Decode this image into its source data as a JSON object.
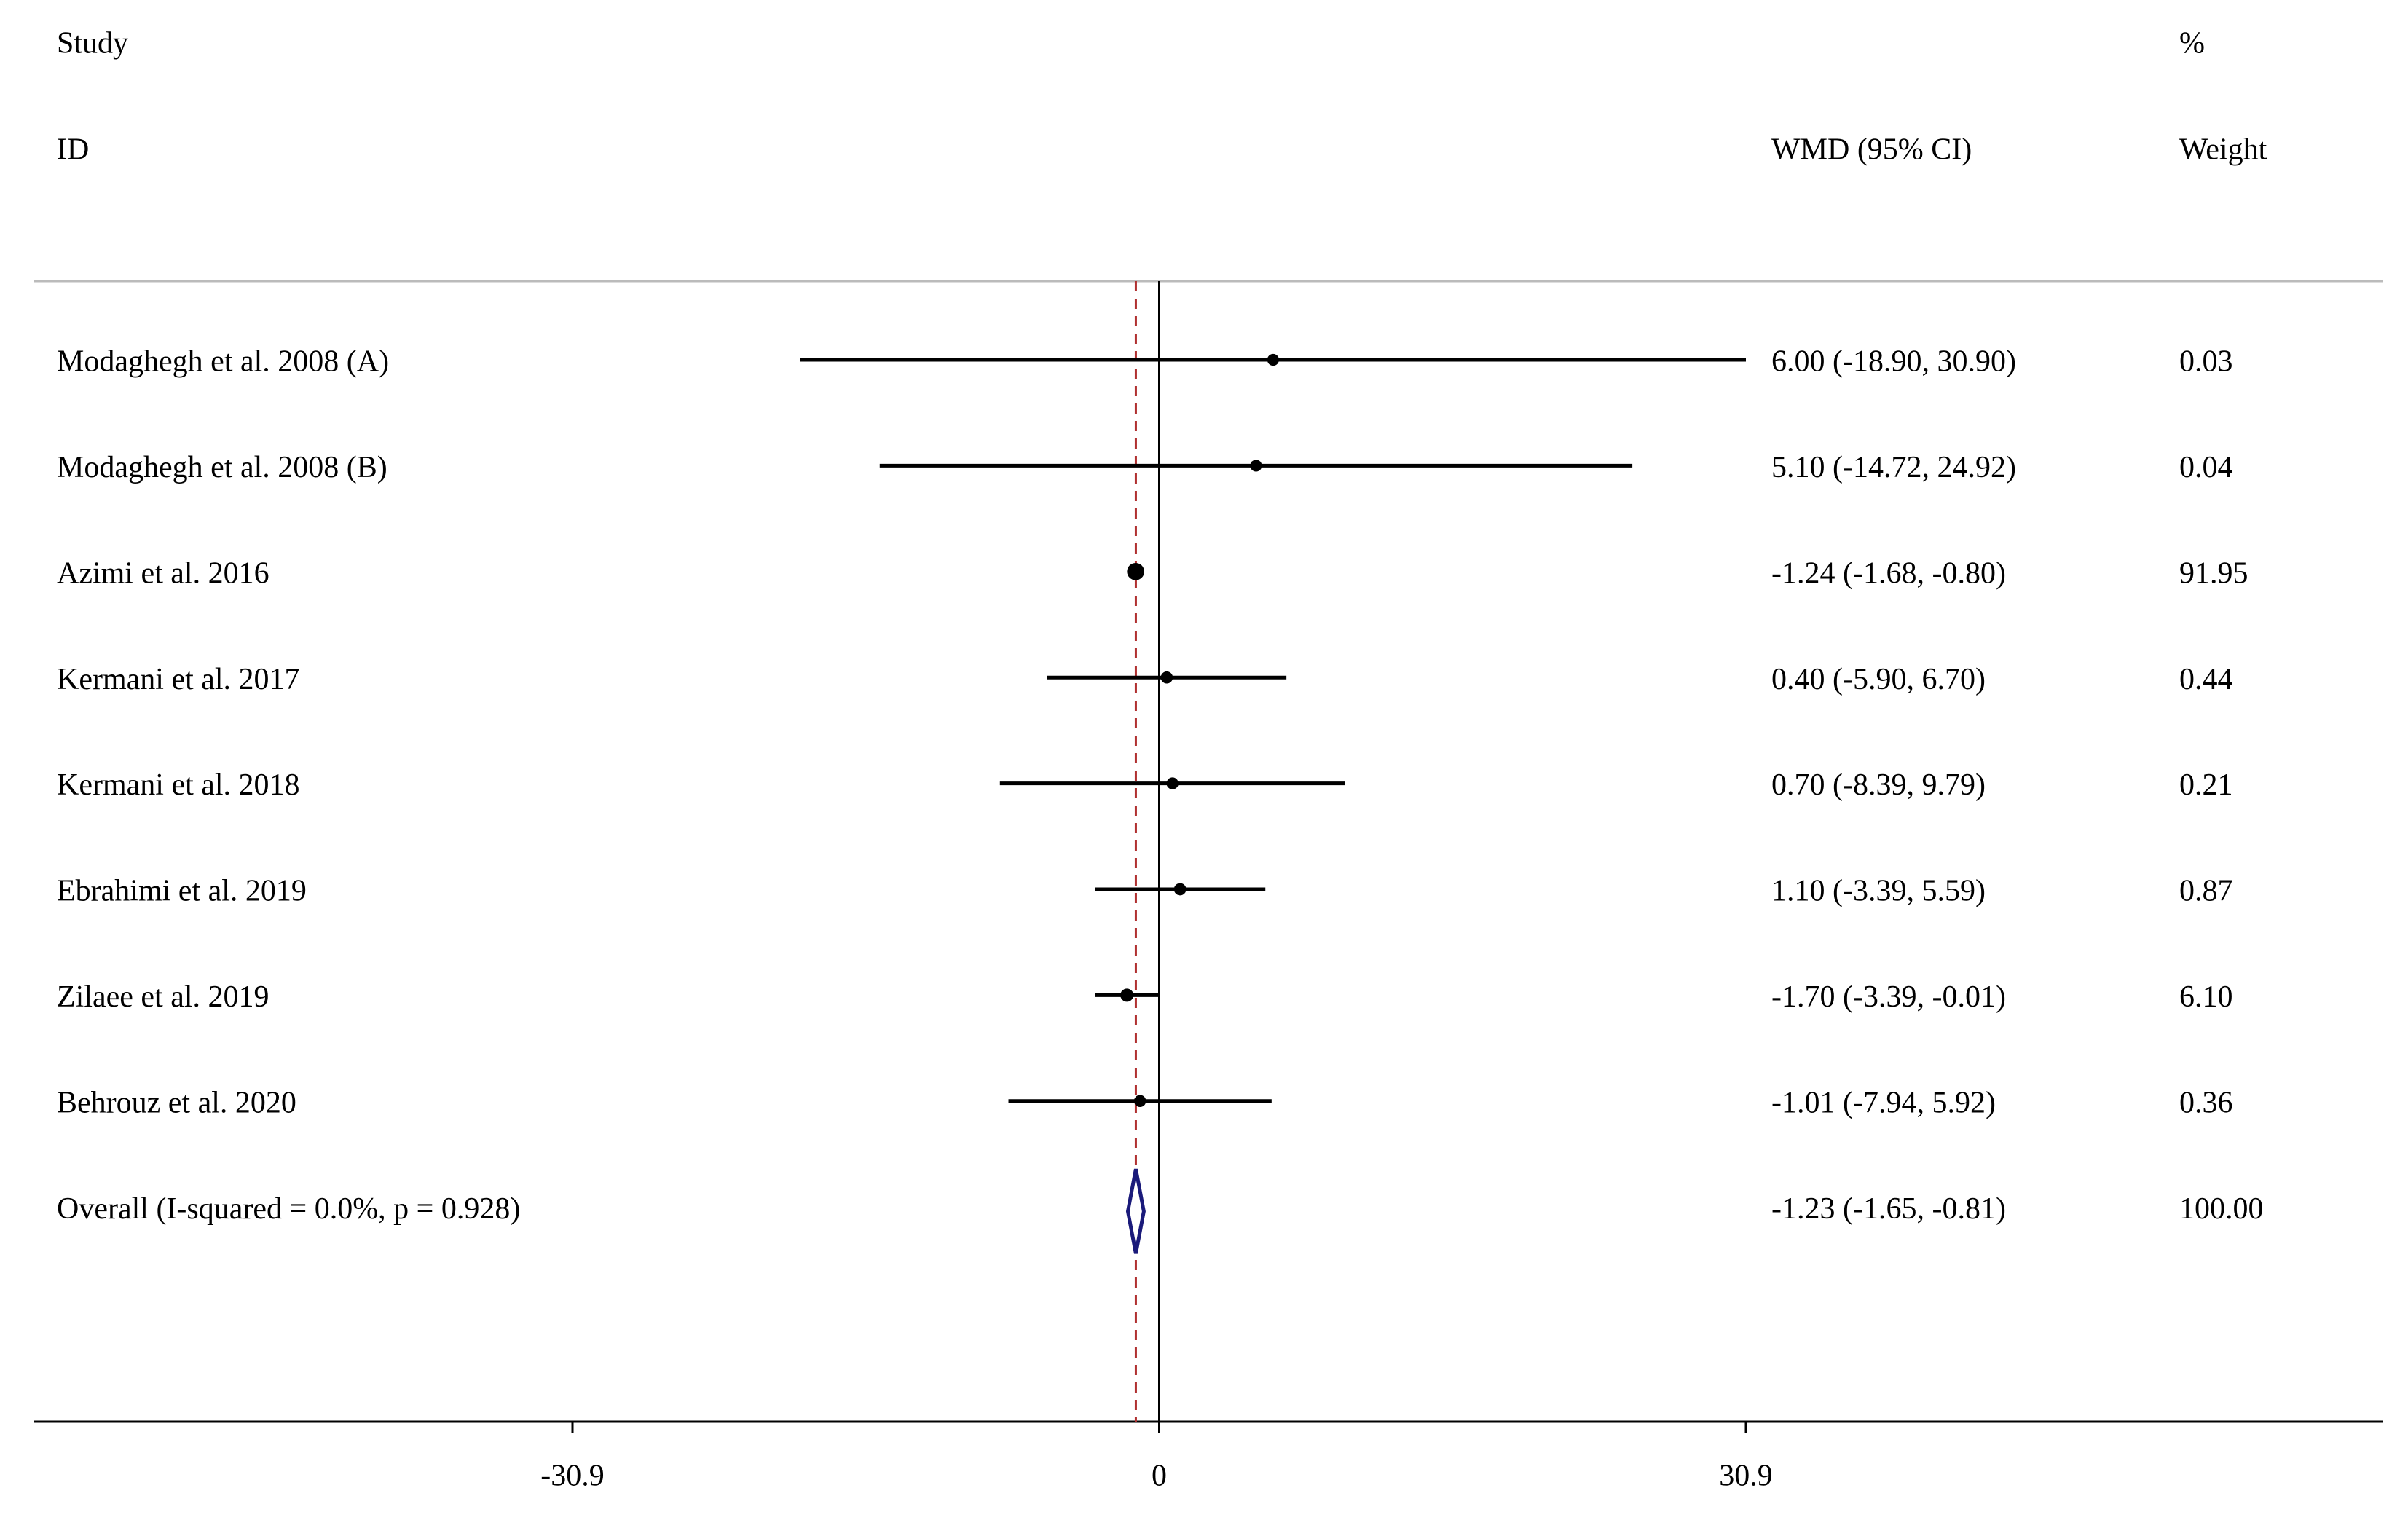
{
  "chart_data": {
    "type": "forest",
    "header": {
      "study": "Study",
      "id": "ID",
      "effect": "WMD (95% CI)",
      "percent": "%",
      "weight": "Weight"
    },
    "categories": [
      "Modaghegh et al. 2008 (A)",
      "Modaghegh et al. 2008 (B)",
      "Azimi et al. 2016",
      "Kermani et al. 2017",
      "Kermani et al. 2018",
      "Ebrahimi et al. 2019",
      "Zilaee et al. 2019",
      "Behrouz et al. 2020"
    ],
    "values": [
      6.0,
      5.1,
      -1.24,
      0.4,
      0.7,
      1.1,
      -1.7,
      -1.01
    ],
    "lower": [
      -18.9,
      -14.72,
      -1.68,
      -5.9,
      -8.39,
      -3.39,
      -3.39,
      -7.94
    ],
    "upper": [
      30.9,
      24.92,
      -0.8,
      6.7,
      9.79,
      5.59,
      -0.01,
      5.92
    ],
    "value_labels": [
      "6.00 (-18.90, 30.90)",
      "5.10 (-14.72, 24.92)",
      "-1.24 (-1.68, -0.80)",
      "0.40 (-5.90, 6.70)",
      "0.70 (-8.39, 9.79)",
      "1.10 (-3.39, 5.59)",
      "-1.70 (-3.39, -0.01)",
      "-1.01 (-7.94, 5.92)"
    ],
    "weights": [
      0.03,
      0.04,
      91.95,
      0.44,
      0.21,
      0.87,
      6.1,
      0.36
    ],
    "weight_labels": [
      "0.03",
      "0.04",
      "91.95",
      "0.44",
      "0.21",
      "0.87",
      "6.10",
      "0.36"
    ],
    "overall": {
      "label": "Overall  (I-squared = 0.0%, p = 0.928)",
      "value": -1.23,
      "lower": -1.65,
      "upper": -0.81,
      "value_label": "-1.23 (-1.65, -0.81)",
      "weight": 100,
      "weight_label": "100.00"
    },
    "xlim": [
      -30.9,
      30.9
    ],
    "xticks": [
      -30.9,
      0,
      30.9
    ],
    "color": "#000000",
    "overall_color": "#1a1a7a",
    "reference_color": "#b03030"
  }
}
